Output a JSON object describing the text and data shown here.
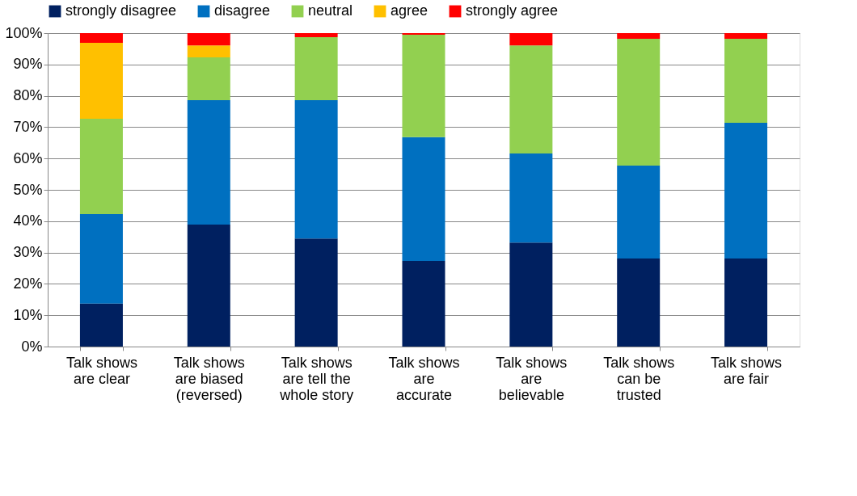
{
  "chart_data": {
    "type": "bar",
    "stacked": true,
    "categories": [
      "Talk shows\nare clear",
      "Talk shows\nare biased\n(reversed)",
      "Talk shows\nare tell the\nwhole story",
      "Talk shows\nare\naccurate",
      "Talk shows\nare\nbelievable",
      "Talk shows\ncan be\ntrusted",
      "Talk shows\nare fair"
    ],
    "series": [
      {
        "name": "strongly disagree",
        "color": "#002060",
        "values": [
          13.7,
          38.9,
          34.5,
          27.3,
          33.2,
          28.1,
          28.1
        ]
      },
      {
        "name": "disagree",
        "color": "#0070c0",
        "values": [
          28.6,
          39.7,
          44.1,
          39.5,
          28.4,
          29.6,
          43.3
        ]
      },
      {
        "name": "neutral",
        "color": "#92d050",
        "values": [
          30.4,
          13.7,
          20.1,
          32.7,
          34.5,
          40.5,
          26.8
        ]
      },
      {
        "name": "agree",
        "color": "#ffc000",
        "values": [
          24.2,
          3.8,
          null,
          null,
          null,
          null,
          null
        ]
      },
      {
        "name": "strongly agree",
        "color": "#ff0000",
        "values": [
          3.1,
          3.9,
          1.3,
          0.5,
          3.9,
          1.8,
          1.8
        ]
      }
    ],
    "ylim": [
      0,
      100
    ],
    "yticks": [
      {
        "value": 0,
        "label": "0%"
      },
      {
        "value": 10,
        "label": "10%"
      },
      {
        "value": 20,
        "label": "20%"
      },
      {
        "value": 30,
        "label": "30%"
      },
      {
        "value": 40,
        "label": "40%"
      },
      {
        "value": 50,
        "label": "50%"
      },
      {
        "value": 60,
        "label": "60%"
      },
      {
        "value": 70,
        "label": "70%"
      },
      {
        "value": 80,
        "label": "80%"
      },
      {
        "value": 90,
        "label": "90%"
      },
      {
        "value": 100,
        "label": "100%"
      }
    ],
    "grid": "y",
    "legend": "top"
  }
}
